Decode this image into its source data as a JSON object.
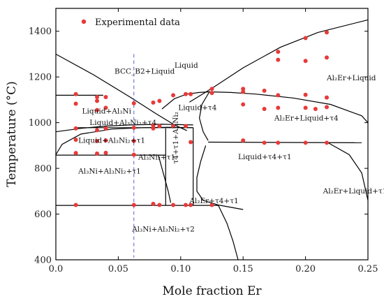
{
  "chart_data": {
    "type": "scatter",
    "title": "",
    "xlabel": "Mole fraction Er",
    "ylabel": "Temperature (°C)",
    "xlim": [
      0.0,
      0.25
    ],
    "ylim": [
      400,
      1500
    ],
    "x_ticks": [
      0.0,
      0.05,
      0.1,
      0.15,
      0.2,
      0.25
    ],
    "x_tick_labels": [
      "0.0",
      "0.05",
      "0.10",
      "0.15",
      "0.20",
      "0.25"
    ],
    "y_ticks": [
      400,
      600,
      800,
      1000,
      1200,
      1400
    ],
    "y_tick_labels": [
      "400",
      "600",
      "800",
      "1000",
      "1200",
      "1400"
    ],
    "grid": false,
    "legend": {
      "position": "top-left",
      "entries": [
        "Experimental data"
      ]
    },
    "colors": {
      "experimental": "#e83a3a",
      "boundary": "#000000",
      "dashed_line": "#5a5ad0"
    },
    "dashed_reference_x": 0.0625,
    "series": [
      {
        "name": "Experimental data",
        "points": [
          [
            0.016,
            1125
          ],
          [
            0.016,
            1083
          ],
          [
            0.016,
            975
          ],
          [
            0.016,
            925
          ],
          [
            0.016,
            867
          ],
          [
            0.016,
            640
          ],
          [
            0.033,
            1112
          ],
          [
            0.033,
            1095
          ],
          [
            0.033,
            1055
          ],
          [
            0.033,
            967
          ],
          [
            0.033,
            920
          ],
          [
            0.033,
            865
          ],
          [
            0.04,
            1112
          ],
          [
            0.04,
            1065
          ],
          [
            0.04,
            975
          ],
          [
            0.04,
            922
          ],
          [
            0.04,
            868
          ],
          [
            0.0625,
            1085
          ],
          [
            0.0625,
            978
          ],
          [
            0.0625,
            920
          ],
          [
            0.0625,
            860
          ],
          [
            0.0625,
            640
          ],
          [
            0.078,
            1088
          ],
          [
            0.078,
            988
          ],
          [
            0.078,
            975
          ],
          [
            0.078,
            645
          ],
          [
            0.083,
            1095
          ],
          [
            0.083,
            985
          ],
          [
            0.083,
            640
          ],
          [
            0.094,
            1120
          ],
          [
            0.094,
            985
          ],
          [
            0.094,
            640
          ],
          [
            0.104,
            1125
          ],
          [
            0.104,
            985
          ],
          [
            0.104,
            640
          ],
          [
            0.108,
            1125
          ],
          [
            0.108,
            915
          ],
          [
            0.108,
            640
          ],
          [
            0.125,
            1148
          ],
          [
            0.125,
            1130
          ],
          [
            0.125,
            640
          ],
          [
            0.15,
            1148
          ],
          [
            0.15,
            1135
          ],
          [
            0.15,
            1080
          ],
          [
            0.15,
            922
          ],
          [
            0.167,
            1140
          ],
          [
            0.167,
            1060
          ],
          [
            0.167,
            912
          ],
          [
            0.178,
            1310
          ],
          [
            0.178,
            1275
          ],
          [
            0.178,
            1120
          ],
          [
            0.178,
            1065
          ],
          [
            0.178,
            912
          ],
          [
            0.2,
            1370
          ],
          [
            0.2,
            1270
          ],
          [
            0.2,
            1122
          ],
          [
            0.2,
            1065
          ],
          [
            0.2,
            912
          ],
          [
            0.208,
            1060
          ],
          [
            0.217,
            1395
          ],
          [
            0.217,
            1285
          ],
          [
            0.217,
            1110
          ],
          [
            0.217,
            1068
          ],
          [
            0.217,
            912
          ]
        ]
      }
    ],
    "phase_labels": [
      {
        "id": "liquid",
        "text": "Liquid",
        "x": 0.095,
        "y": 1240
      },
      {
        "id": "bcc-b2-liquid",
        "text": "BCC_B2+Liquid",
        "x": 0.047,
        "y": 1215
      },
      {
        "id": "liquid-al3ni",
        "text": "Liquid+Al₃Ni",
        "x": 0.021,
        "y": 1040
      },
      {
        "id": "liquid-t4",
        "text": "Liquid+τ4",
        "x": 0.098,
        "y": 1055
      },
      {
        "id": "al2er-liquid",
        "text": "Al₂Er+Liquid",
        "x": 0.217,
        "y": 1185
      },
      {
        "id": "liquid-al3ni2-t4",
        "text": "Liquid+Al₃Ni₂+τ4",
        "x": 0.027,
        "y": 990
      },
      {
        "id": "al2er-liquid-t4",
        "text": "Al₂Er+Liquid+τ4",
        "x": 0.175,
        "y": 1010
      },
      {
        "id": "liquid-al3ni2-t1",
        "text": "Liquid+Al₃Ni₂+τ1",
        "x": 0.018,
        "y": 912
      },
      {
        "id": "liquid-t4-t1",
        "text": "Liquid+τ4+τ1",
        "x": 0.146,
        "y": 840
      },
      {
        "id": "al3ni2-t1",
        "text": "Al₃Ni₂+τ1",
        "x": 0.066,
        "y": 838
      },
      {
        "id": "al3ni-al3ni2-t1",
        "text": "Al₃Ni+Al₃Ni₂+τ1",
        "x": 0.018,
        "y": 778
      },
      {
        "id": "t4-t1-al3ni2",
        "text": "τ4+τ1+Al₃Ni₂",
        "x": 0.098,
        "y": 820,
        "vertical": true
      },
      {
        "id": "al2er-t4-t1",
        "text": "Al₂Er+τ4+τ1",
        "x": 0.107,
        "y": 648
      },
      {
        "id": "al2er-liquid-t1",
        "text": "Al₂Er+Liquid+τ1",
        "x": 0.214,
        "y": 690
      },
      {
        "id": "al3ni-al3ni2-t2",
        "text": "Al₃Ni+Al₃Ni₂+τ2",
        "x": 0.061,
        "y": 523
      }
    ],
    "phase_boundaries": [
      {
        "id": "liquidus-al3ni",
        "points": [
          [
            0.0,
            1300
          ],
          [
            0.03,
            1210
          ],
          [
            0.06,
            1110
          ],
          [
            0.08,
            1040
          ],
          [
            0.095,
            990
          ],
          [
            0.105,
            965
          ]
        ]
      },
      {
        "id": "liquidus-al2er",
        "points": [
          [
            0.107,
            1090
          ],
          [
            0.125,
            1150
          ],
          [
            0.15,
            1240
          ],
          [
            0.18,
            1330
          ],
          [
            0.21,
            1395
          ],
          [
            0.25,
            1450
          ]
        ]
      },
      {
        "id": "iso-1120",
        "points": [
          [
            0.0,
            1120
          ],
          [
            0.038,
            1120
          ]
        ]
      },
      {
        "id": "liquid-t4-left",
        "points": [
          [
            0.085,
            1060
          ],
          [
            0.095,
            1105
          ],
          [
            0.105,
            1125
          ],
          [
            0.115,
            1132
          ],
          [
            0.123,
            1135
          ]
        ]
      },
      {
        "id": "liquid-t4-top",
        "points": [
          [
            0.123,
            1135
          ],
          [
            0.14,
            1132
          ],
          [
            0.16,
            1125
          ],
          [
            0.19,
            1108
          ],
          [
            0.22,
            1080
          ],
          [
            0.245,
            1030
          ],
          [
            0.25,
            1000
          ]
        ]
      },
      {
        "id": "l-t4-inner-right",
        "points": [
          [
            0.123,
            1135
          ],
          [
            0.117,
            1080
          ],
          [
            0.115,
            1020
          ],
          [
            0.118,
            960
          ],
          [
            0.122,
            922
          ]
        ]
      },
      {
        "id": "al3ni-liq-left",
        "points": [
          [
            0.0,
            960
          ],
          [
            0.02,
            975
          ],
          [
            0.04,
            985
          ],
          [
            0.06,
            990
          ],
          [
            0.085,
            993
          ],
          [
            0.11,
            990
          ]
        ]
      },
      {
        "id": "liq-al3ni2-t1-top",
        "points": [
          [
            0.0,
            860
          ],
          [
            0.005,
            905
          ],
          [
            0.02,
            950
          ],
          [
            0.045,
            972
          ],
          [
            0.07,
            978
          ],
          [
            0.09,
            980
          ],
          [
            0.11,
            978
          ]
        ]
      },
      {
        "id": "iso-978",
        "points": [
          [
            0.016,
            978
          ],
          [
            0.11,
            978
          ]
        ]
      },
      {
        "id": "iso-912",
        "points": [
          [
            0.122,
            915
          ],
          [
            0.245,
            912
          ]
        ]
      },
      {
        "id": "iso-858",
        "points": [
          [
            0.0,
            858
          ],
          [
            0.088,
            858
          ]
        ]
      },
      {
        "id": "vert-a",
        "points": [
          [
            0.088,
            975
          ],
          [
            0.088,
            638
          ]
        ]
      },
      {
        "id": "vert-b",
        "points": [
          [
            0.11,
            978
          ],
          [
            0.11,
            638
          ]
        ]
      },
      {
        "id": "al3ni2-t1-curve",
        "points": [
          [
            0.082,
            860
          ],
          [
            0.084,
            820
          ],
          [
            0.087,
            760
          ],
          [
            0.09,
            700
          ],
          [
            0.092,
            650
          ]
        ]
      },
      {
        "id": "iso-640-left",
        "points": [
          [
            0.0,
            638
          ],
          [
            0.13,
            638
          ]
        ]
      },
      {
        "id": "l-t4-t1-cross",
        "points": [
          [
            0.12,
            900
          ],
          [
            0.116,
            830
          ],
          [
            0.113,
            760
          ],
          [
            0.113,
            700
          ],
          [
            0.118,
            660
          ],
          [
            0.13,
            640
          ],
          [
            0.15,
            620
          ]
        ]
      },
      {
        "id": "drop-curve",
        "points": [
          [
            0.13,
            640
          ],
          [
            0.137,
            560
          ],
          [
            0.142,
            480
          ],
          [
            0.146,
            400
          ]
        ]
      },
      {
        "id": "right-low",
        "points": [
          [
            0.218,
            912
          ],
          [
            0.235,
            860
          ],
          [
            0.245,
            780
          ],
          [
            0.25,
            660
          ]
        ]
      }
    ]
  }
}
